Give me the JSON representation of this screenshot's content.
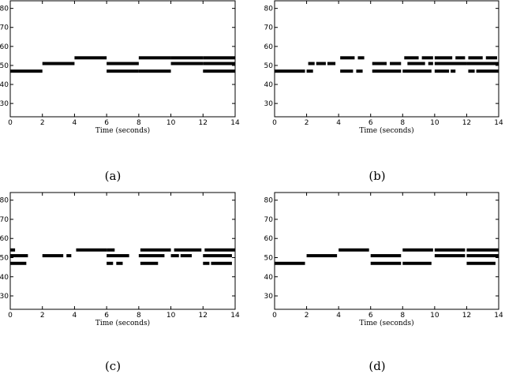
{
  "chart_data": [
    {
      "type": "scatter",
      "caption": "(a)",
      "xlabel": "Time (seconds)",
      "ylabel": "",
      "xlim": [
        0,
        14
      ],
      "ylim": [
        23,
        84
      ],
      "xticks": [
        0,
        2,
        4,
        6,
        8,
        10,
        12,
        14
      ],
      "yticks": [
        30,
        40,
        50,
        60,
        70,
        80
      ],
      "notes": [
        {
          "pitch": 47,
          "start": 0.0,
          "end": 2.0
        },
        {
          "pitch": 51,
          "start": 2.0,
          "end": 4.0
        },
        {
          "pitch": 54,
          "start": 4.0,
          "end": 6.0
        },
        {
          "pitch": 51,
          "start": 6.0,
          "end": 8.0
        },
        {
          "pitch": 47,
          "start": 6.0,
          "end": 8.0
        },
        {
          "pitch": 54,
          "start": 8.0,
          "end": 10.0
        },
        {
          "pitch": 47,
          "start": 8.0,
          "end": 10.0
        },
        {
          "pitch": 54,
          "start": 10.0,
          "end": 12.0
        },
        {
          "pitch": 51,
          "start": 10.0,
          "end": 12.0
        },
        {
          "pitch": 54,
          "start": 12.0,
          "end": 14.0
        },
        {
          "pitch": 51,
          "start": 12.0,
          "end": 14.0
        },
        {
          "pitch": 47,
          "start": 12.0,
          "end": 14.0
        }
      ]
    },
    {
      "type": "scatter",
      "caption": "(b)",
      "xlabel": "Time (seconds)",
      "ylabel": "",
      "xlim": [
        0,
        14
      ],
      "ylim": [
        23,
        84
      ],
      "xticks": [
        0,
        2,
        4,
        6,
        8,
        10,
        12,
        14
      ],
      "yticks": [
        30,
        40,
        50,
        60,
        70,
        80
      ],
      "notes": [
        {
          "pitch": 47,
          "start": 0.0,
          "end": 1.9
        },
        {
          "pitch": 47,
          "start": 2.0,
          "end": 2.4
        },
        {
          "pitch": 51,
          "start": 2.1,
          "end": 2.5
        },
        {
          "pitch": 51,
          "start": 2.6,
          "end": 3.2
        },
        {
          "pitch": 51,
          "start": 3.3,
          "end": 3.8
        },
        {
          "pitch": 54,
          "start": 4.1,
          "end": 5.0
        },
        {
          "pitch": 54,
          "start": 5.2,
          "end": 5.6
        },
        {
          "pitch": 47,
          "start": 4.1,
          "end": 4.9
        },
        {
          "pitch": 47,
          "start": 5.1,
          "end": 5.5
        },
        {
          "pitch": 51,
          "start": 6.1,
          "end": 7.0
        },
        {
          "pitch": 51,
          "start": 7.2,
          "end": 7.9
        },
        {
          "pitch": 47,
          "start": 6.1,
          "end": 7.9
        },
        {
          "pitch": 54,
          "start": 8.1,
          "end": 9.0
        },
        {
          "pitch": 54,
          "start": 9.2,
          "end": 9.9
        },
        {
          "pitch": 51,
          "start": 8.3,
          "end": 9.4
        },
        {
          "pitch": 51,
          "start": 9.6,
          "end": 9.9
        },
        {
          "pitch": 47,
          "start": 8.0,
          "end": 9.8
        },
        {
          "pitch": 54,
          "start": 10.0,
          "end": 11.1
        },
        {
          "pitch": 54,
          "start": 11.3,
          "end": 11.9
        },
        {
          "pitch": 51,
          "start": 10.0,
          "end": 12.0
        },
        {
          "pitch": 47,
          "start": 10.0,
          "end": 10.9
        },
        {
          "pitch": 47,
          "start": 11.0,
          "end": 11.3
        },
        {
          "pitch": 54,
          "start": 12.1,
          "end": 13.0
        },
        {
          "pitch": 54,
          "start": 13.2,
          "end": 13.9
        },
        {
          "pitch": 51,
          "start": 12.0,
          "end": 14.0
        },
        {
          "pitch": 47,
          "start": 12.1,
          "end": 12.5
        },
        {
          "pitch": 47,
          "start": 12.6,
          "end": 14.0
        }
      ]
    },
    {
      "type": "scatter",
      "caption": "(c)",
      "xlabel": "Time (seconds)",
      "ylabel": "",
      "xlim": [
        0,
        14
      ],
      "ylim": [
        23,
        84
      ],
      "xticks": [
        0,
        2,
        4,
        6,
        8,
        10,
        12,
        14
      ],
      "yticks": [
        30,
        40,
        50,
        60,
        70,
        80
      ],
      "notes": [
        {
          "pitch": 54,
          "start": 0.0,
          "end": 0.3
        },
        {
          "pitch": 51,
          "start": 0.0,
          "end": 1.1
        },
        {
          "pitch": 47,
          "start": 0.0,
          "end": 1.0
        },
        {
          "pitch": 51,
          "start": 2.0,
          "end": 3.3
        },
        {
          "pitch": 51,
          "start": 3.5,
          "end": 3.8
        },
        {
          "pitch": 54,
          "start": 4.1,
          "end": 6.0
        },
        {
          "pitch": 54,
          "start": 6.0,
          "end": 6.5
        },
        {
          "pitch": 51,
          "start": 6.0,
          "end": 7.4
        },
        {
          "pitch": 47,
          "start": 6.0,
          "end": 6.4
        },
        {
          "pitch": 47,
          "start": 6.6,
          "end": 7.0
        },
        {
          "pitch": 54,
          "start": 8.1,
          "end": 10.0
        },
        {
          "pitch": 51,
          "start": 8.0,
          "end": 9.6
        },
        {
          "pitch": 47,
          "start": 8.1,
          "end": 9.2
        },
        {
          "pitch": 54,
          "start": 10.2,
          "end": 11.9
        },
        {
          "pitch": 51,
          "start": 10.0,
          "end": 10.5
        },
        {
          "pitch": 51,
          "start": 10.6,
          "end": 11.3
        },
        {
          "pitch": 54,
          "start": 12.1,
          "end": 14.0
        },
        {
          "pitch": 51,
          "start": 12.0,
          "end": 13.8
        },
        {
          "pitch": 47,
          "start": 12.0,
          "end": 12.4
        },
        {
          "pitch": 47,
          "start": 12.5,
          "end": 13.8
        }
      ]
    },
    {
      "type": "scatter",
      "caption": "(d)",
      "xlabel": "Time (seconds)",
      "ylabel": "",
      "xlim": [
        0,
        14
      ],
      "ylim": [
        23,
        84
      ],
      "xticks": [
        0,
        2,
        4,
        6,
        8,
        10,
        12,
        14
      ],
      "yticks": [
        30,
        40,
        50,
        60,
        70,
        80
      ],
      "notes": [
        {
          "pitch": 47,
          "start": 0.0,
          "end": 1.9
        },
        {
          "pitch": 51,
          "start": 2.0,
          "end": 3.9
        },
        {
          "pitch": 54,
          "start": 4.0,
          "end": 5.9
        },
        {
          "pitch": 51,
          "start": 6.0,
          "end": 7.9
        },
        {
          "pitch": 47,
          "start": 6.0,
          "end": 7.9
        },
        {
          "pitch": 54,
          "start": 8.0,
          "end": 9.9
        },
        {
          "pitch": 47,
          "start": 8.0,
          "end": 9.8
        },
        {
          "pitch": 54,
          "start": 10.0,
          "end": 11.9
        },
        {
          "pitch": 51,
          "start": 10.0,
          "end": 11.9
        },
        {
          "pitch": 54,
          "start": 12.0,
          "end": 14.0
        },
        {
          "pitch": 51,
          "start": 12.0,
          "end": 14.0
        },
        {
          "pitch": 47,
          "start": 12.0,
          "end": 13.8
        }
      ]
    }
  ]
}
